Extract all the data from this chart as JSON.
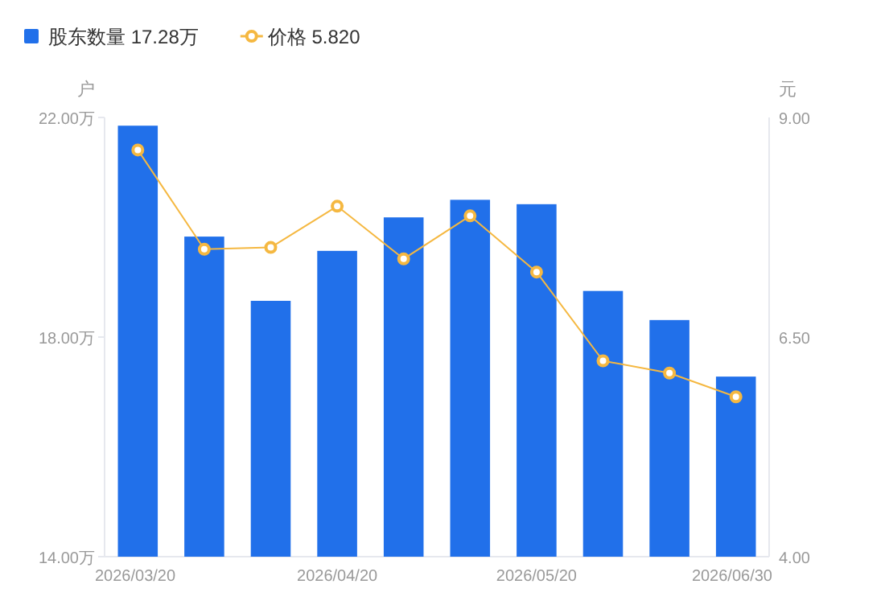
{
  "chart_data": {
    "type": "bar",
    "categories": [
      "2026/03/20",
      null,
      null,
      "2026/04/20",
      null,
      null,
      "2026/05/20",
      null,
      null,
      "2026/06/30"
    ],
    "ylabel": "户",
    "y2label": "元",
    "ylim": [
      14,
      22
    ],
    "yticks": [
      {
        "value": 14,
        "label": "14.00万"
      },
      {
        "value": 18,
        "label": "18.00万"
      },
      {
        "value": 22,
        "label": "22.00万"
      }
    ],
    "y2lim": [
      4,
      9
    ],
    "y2ticks": [
      {
        "value": 4,
        "label": "4.00"
      },
      {
        "value": 6.5,
        "label": "6.50"
      },
      {
        "value": 9,
        "label": "9.00"
      }
    ],
    "series": [
      {
        "name": "股东数量  17.28万",
        "color": "#2170ea",
        "values": [
          21.85,
          19.83,
          18.66,
          19.57,
          20.18,
          20.5,
          20.42,
          18.84,
          18.31,
          17.28
        ]
      },
      {
        "name": "价格  5.820",
        "type": "line",
        "axis": "y2",
        "color": "#f5b841",
        "marker": "circle",
        "values": [
          8.63,
          7.5,
          7.52,
          7.99,
          7.39,
          7.88,
          7.24,
          6.23,
          6.09,
          5.82
        ]
      }
    ],
    "legend": "top left",
    "grid": false
  }
}
